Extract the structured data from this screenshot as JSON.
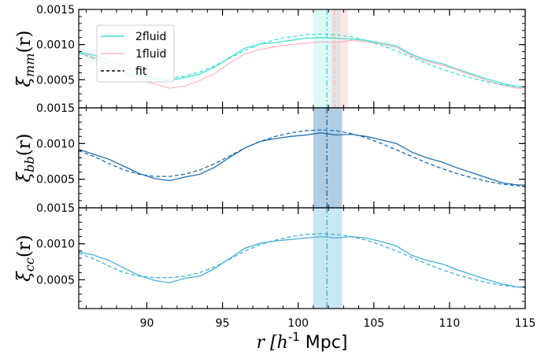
{
  "chart_data": {
    "type": "line",
    "xlabel": "r [h^{-1} Mpc]",
    "xlim": [
      85.5,
      115
    ],
    "xticks": [
      90,
      95,
      100,
      105,
      110,
      115
    ],
    "xtick_labels": [
      "90",
      "95",
      "100",
      "105",
      "110",
      "115"
    ],
    "shared_x": true,
    "panels": [
      {
        "name": "mm",
        "ylabel": "ξ_mm(r)",
        "ylim": [
          0.0001,
          0.0015
        ],
        "yticks": [
          0.0005,
          0.001,
          0.0015
        ],
        "ytick_labels": [
          "0.0005",
          "0.0010",
          "0.0015"
        ],
        "legend_placement": "upper-left",
        "series": [
          {
            "name": "2fluid",
            "style": "solid",
            "color": "#40e0d0",
            "x": [
              85.5,
              86.5,
              87.5,
              88.5,
              89.5,
              90.5,
              91.5,
              92.5,
              93.5,
              94.5,
              95.5,
              96.5,
              97.5,
              98.5,
              99.5,
              100.5,
              101.5,
              102.5,
              103.5,
              104.5,
              105.5,
              106.5,
              107.5,
              108.5,
              109.5,
              110.5,
              111.5,
              112.5,
              113.5,
              114.5,
              115
            ],
            "y": [
              0.00089,
              0.00085,
              0.00078,
              0.00068,
              0.00058,
              0.00051,
              0.00049,
              0.00053,
              0.00058,
              0.00068,
              0.00082,
              0.00095,
              0.00101,
              0.00103,
              0.00106,
              0.00109,
              0.0011,
              0.00109,
              0.00108,
              0.00106,
              0.00102,
              0.00098,
              0.00086,
              0.00078,
              0.00073,
              0.00065,
              0.00058,
              0.00051,
              0.00045,
              0.0004,
              0.0004
            ]
          },
          {
            "name": "1fluid",
            "style": "solid",
            "color": "#ffb6c1",
            "x": [
              85.5,
              86.5,
              87.5,
              88.5,
              89.5,
              90.5,
              91.5,
              92.5,
              93.5,
              94.5,
              95.5,
              96.5,
              97.5,
              98.5,
              99.5,
              100.5,
              101.5,
              102.5,
              103.5,
              104.5,
              105.5,
              106.5,
              107.5,
              108.5,
              109.5,
              110.5,
              111.5,
              112.5,
              113.5,
              114.5,
              115
            ],
            "y": [
              0.00088,
              0.00082,
              0.00072,
              0.0006,
              0.0005,
              0.00044,
              0.00038,
              0.00041,
              0.00049,
              0.00059,
              0.00074,
              0.00087,
              0.00093,
              0.00097,
              0.001,
              0.00102,
              0.00104,
              0.00103,
              0.00106,
              0.00104,
              0.00101,
              0.00096,
              0.00084,
              0.00076,
              0.00071,
              0.00064,
              0.00056,
              0.00049,
              0.00042,
              0.00038,
              0.00038
            ]
          },
          {
            "name": "fit",
            "style": "dashed",
            "color": "#40e0d0",
            "x": [
              85.5,
              86.5,
              87.5,
              88.5,
              89.5,
              90.5,
              91.5,
              92.5,
              93.5,
              94.5,
              95.5,
              96.5,
              97.5,
              98.5,
              99.5,
              100.5,
              101.5,
              102.5,
              103.5,
              104.5,
              105.5,
              106.5,
              107.5,
              108.5,
              109.5,
              110.5,
              111.5,
              112.5,
              113.5,
              114.5,
              115
            ],
            "y": [
              0.00088,
              0.0008,
              0.0007,
              0.00061,
              0.00055,
              0.00052,
              0.00052,
              0.00055,
              0.00061,
              0.0007,
              0.00081,
              0.00092,
              0.00101,
              0.00107,
              0.00111,
              0.00114,
              0.00115,
              0.00114,
              0.00111,
              0.00106,
              0.00099,
              0.00091,
              0.00082,
              0.00073,
              0.00065,
              0.00058,
              0.00052,
              0.00047,
              0.00043,
              0.0004,
              0.00039
            ]
          }
        ],
        "bands": [
          {
            "color": "#40e0d0",
            "opacity": 0.18,
            "x": [
              101.0,
              102.8
            ]
          },
          {
            "color": "#ffb6c1",
            "opacity": 0.35,
            "x": [
              102.2,
              103.3
            ]
          }
        ],
        "vlines": [
          {
            "x": 101.9,
            "color": "#40e0d0",
            "style": "dashdot"
          },
          {
            "x": 102.4,
            "color": "#ffb6c1",
            "style": "dashdot"
          }
        ]
      },
      {
        "name": "bb",
        "ylabel": "ξ_bb(r)",
        "ylim": [
          0.0001,
          0.0015
        ],
        "yticks": [
          0.0005,
          0.001,
          0.0015
        ],
        "ytick_labels": [
          "0.0005",
          "0.0010",
          "0.0015"
        ],
        "series": [
          {
            "name": "",
            "style": "solid",
            "color": "#1f6fb0",
            "x": [
              85.5,
              86.5,
              87.5,
              88.5,
              89.5,
              90.5,
              91.5,
              92.5,
              93.5,
              94.5,
              95.5,
              96.5,
              97.5,
              98.5,
              99.5,
              100.5,
              101.5,
              102.5,
              103.5,
              104.5,
              105.5,
              106.5,
              107.5,
              108.5,
              109.5,
              110.5,
              111.5,
              112.5,
              113.5,
              114.5,
              115
            ],
            "y": [
              0.00092,
              0.00085,
              0.00078,
              0.00068,
              0.00058,
              0.00051,
              0.00048,
              0.00053,
              0.00057,
              0.00067,
              0.00081,
              0.00094,
              0.00103,
              0.00107,
              0.0011,
              0.00112,
              0.00115,
              0.00112,
              0.00113,
              0.0011,
              0.00105,
              0.001,
              0.00088,
              0.0008,
              0.00074,
              0.00066,
              0.00059,
              0.00052,
              0.00045,
              0.00042,
              0.00042
            ]
          },
          {
            "name": "",
            "style": "dashed",
            "color": "#1f6fb0",
            "x": [
              85.5,
              86.5,
              87.5,
              88.5,
              89.5,
              90.5,
              91.5,
              92.5,
              93.5,
              94.5,
              95.5,
              96.5,
              97.5,
              98.5,
              99.5,
              100.5,
              101.5,
              102.5,
              103.5,
              104.5,
              105.5,
              106.5,
              107.5,
              108.5,
              109.5,
              110.5,
              111.5,
              112.5,
              113.5,
              114.5,
              115
            ],
            "y": [
              0.0009,
              0.00082,
              0.00072,
              0.00063,
              0.00057,
              0.00054,
              0.00054,
              0.00057,
              0.00063,
              0.00072,
              0.00083,
              0.00094,
              0.00103,
              0.0011,
              0.00115,
              0.00118,
              0.00119,
              0.00118,
              0.00114,
              0.00108,
              0.001,
              0.00091,
              0.00082,
              0.00073,
              0.00065,
              0.00058,
              0.00052,
              0.00047,
              0.00043,
              0.00041,
              0.0004
            ]
          }
        ],
        "bands": [
          {
            "color": "#1f6fb0",
            "opacity": 0.35,
            "x": [
              101.0,
              102.9
            ]
          }
        ],
        "vlines": [
          {
            "x": 101.9,
            "color": "#1f6fb0",
            "style": "dashdot"
          }
        ]
      },
      {
        "name": "cc",
        "ylabel": "ξ_cc(r)",
        "ylim": [
          0.0001,
          0.0015
        ],
        "yticks": [
          0.0005,
          0.001,
          0.0015
        ],
        "ytick_labels": [
          "0.0005",
          "0.0010",
          "0.0015"
        ],
        "series": [
          {
            "name": "",
            "style": "solid",
            "color": "#45b0d8",
            "x": [
              85.5,
              86.5,
              87.5,
              88.5,
              89.5,
              90.5,
              91.5,
              92.5,
              93.5,
              94.5,
              95.5,
              96.5,
              97.5,
              98.5,
              99.5,
              100.5,
              101.5,
              102.5,
              103.5,
              104.5,
              105.5,
              106.5,
              107.5,
              108.5,
              109.5,
              110.5,
              111.5,
              112.5,
              113.5,
              114.5,
              115
            ],
            "y": [
              0.00089,
              0.00084,
              0.00077,
              0.00066,
              0.00056,
              0.00049,
              0.00046,
              0.00052,
              0.00055,
              0.00066,
              0.0008,
              0.00094,
              0.00101,
              0.00104,
              0.00106,
              0.00108,
              0.0011,
              0.00108,
              0.0011,
              0.00108,
              0.00103,
              0.00097,
              0.00084,
              0.00077,
              0.00072,
              0.00064,
              0.00057,
              0.0005,
              0.00044,
              0.0004,
              0.0004
            ]
          },
          {
            "name": "",
            "style": "dashed",
            "color": "#45b0d8",
            "x": [
              85.5,
              86.5,
              87.5,
              88.5,
              89.5,
              90.5,
              91.5,
              92.5,
              93.5,
              94.5,
              95.5,
              96.5,
              97.5,
              98.5,
              99.5,
              100.5,
              101.5,
              102.5,
              103.5,
              104.5,
              105.5,
              106.5,
              107.5,
              108.5,
              109.5,
              110.5,
              111.5,
              112.5,
              113.5,
              114.5,
              115
            ],
            "y": [
              0.00087,
              0.00079,
              0.00069,
              0.0006,
              0.00055,
              0.00053,
              0.00053,
              0.00055,
              0.0006,
              0.00068,
              0.00079,
              0.0009,
              0.00099,
              0.00105,
              0.0011,
              0.00113,
              0.00114,
              0.00113,
              0.0011,
              0.00105,
              0.00098,
              0.0009,
              0.00081,
              0.00072,
              0.00064,
              0.00057,
              0.00051,
              0.00046,
              0.00042,
              0.0004,
              0.00039
            ]
          }
        ],
        "bands": [
          {
            "color": "#45b0d8",
            "opacity": 0.3,
            "x": [
              101.0,
              102.9
            ]
          }
        ],
        "vlines": [
          {
            "x": 101.9,
            "color": "#45b0d8",
            "style": "dashdot"
          }
        ]
      }
    ]
  }
}
